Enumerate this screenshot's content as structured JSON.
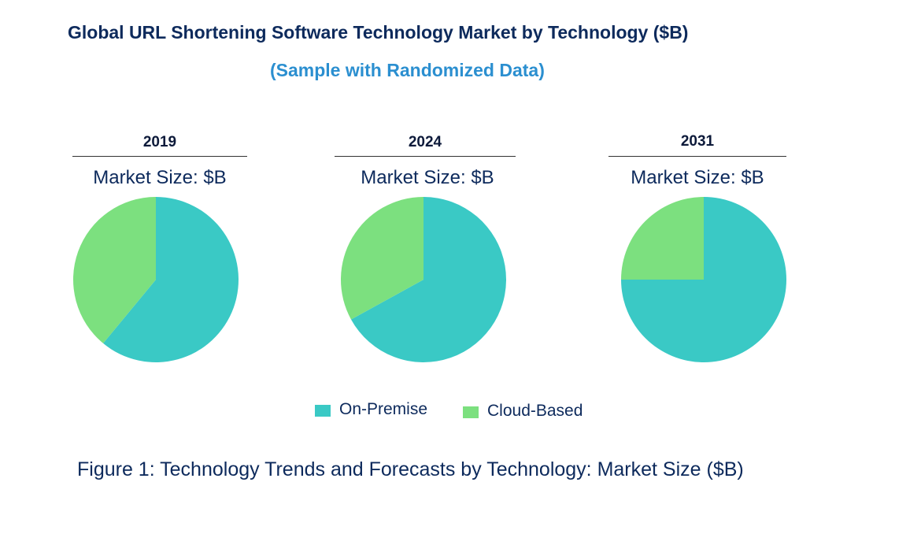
{
  "title": "Global URL Shortening Software Technology Market by  Technology ($B)",
  "subtitle": "(Sample with Randomized Data)",
  "caption": "Figure 1: Technology Trends and Forecasts by Technology: Market Size ($B)",
  "colors": {
    "on_premise": "#3ac9c5",
    "cloud_based": "#7ce07f",
    "title": "#0d2a5c",
    "subtitle": "#2b8fd0"
  },
  "chart_data": {
    "type": "pie",
    "series_names": [
      "On-Premise",
      "Cloud-Based"
    ],
    "pies": [
      {
        "year": "2019",
        "market_size_label": "Market Size: $B",
        "values": [
          61,
          39
        ]
      },
      {
        "year": "2024",
        "market_size_label": "Market Size: $B",
        "values": [
          67,
          33
        ]
      },
      {
        "year": "2031",
        "market_size_label": "Market Size: $B",
        "values": [
          75,
          25
        ]
      }
    ],
    "legend": [
      {
        "label": "On-Premise",
        "color": "#3ac9c5"
      },
      {
        "label": "Cloud-Based",
        "color": "#7ce07f"
      }
    ],
    "legend_position": "bottom"
  }
}
